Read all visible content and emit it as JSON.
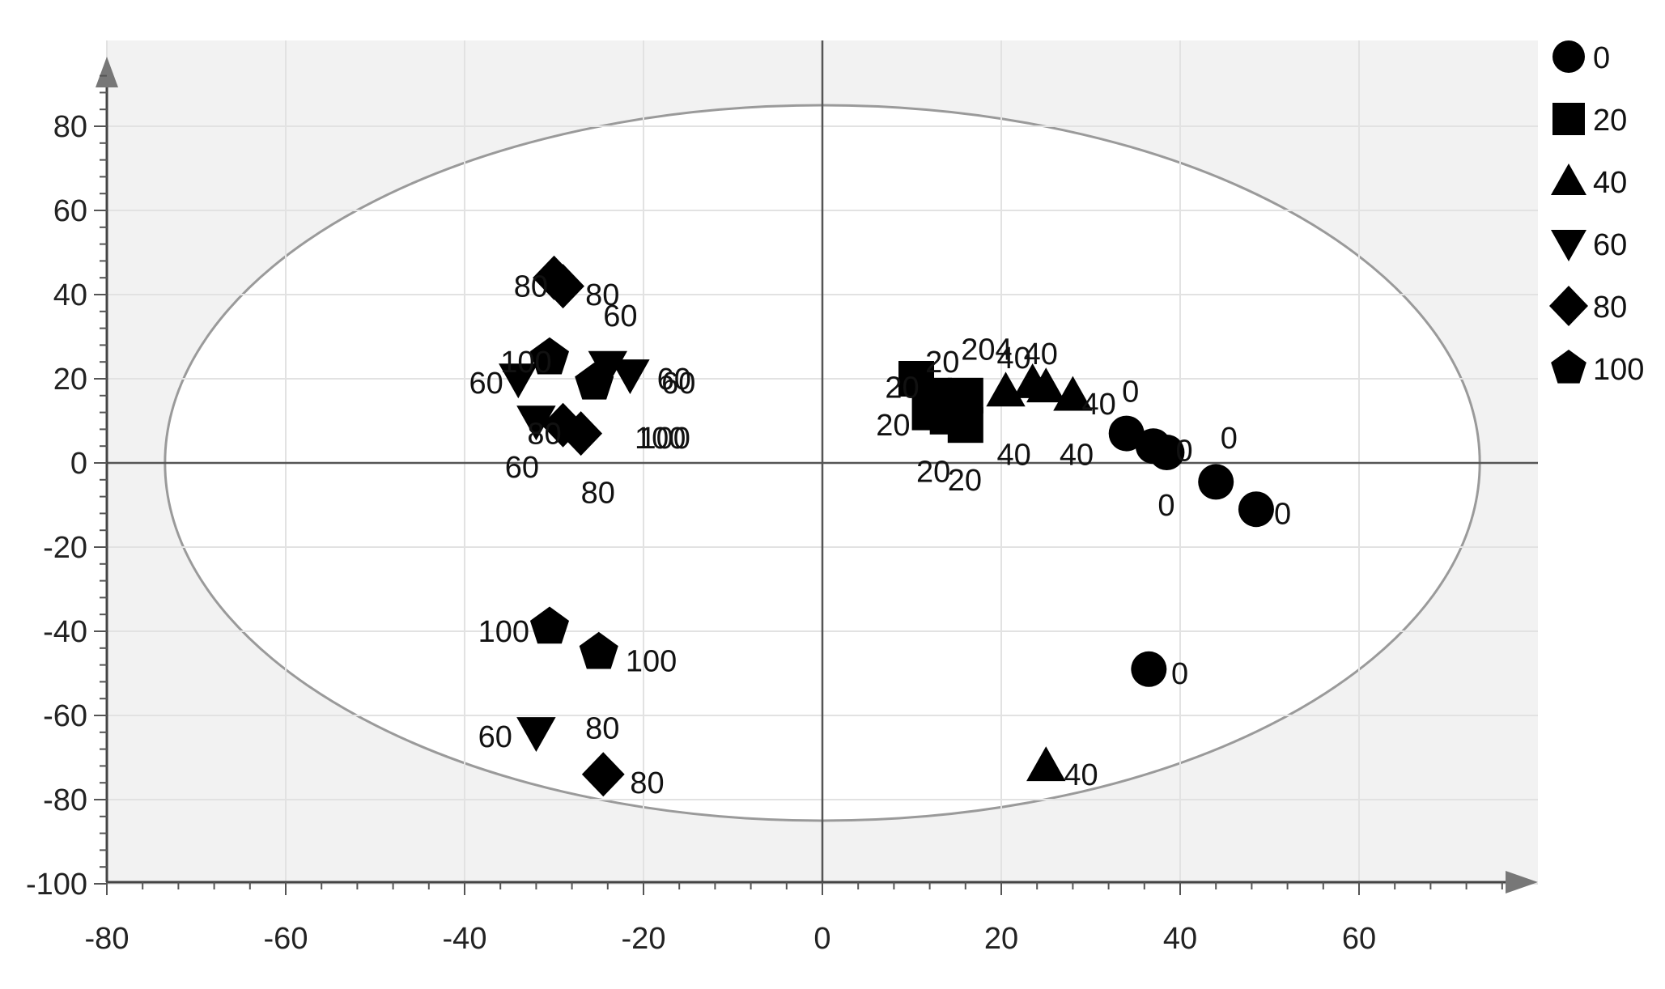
{
  "chart_data": {
    "type": "scatter",
    "title": "",
    "xlabel": "",
    "ylabel": "",
    "xlim": [
      -80,
      80
    ],
    "ylim": [
      -100,
      100
    ],
    "x_ticks": [
      -80,
      -60,
      -40,
      -20,
      0,
      20,
      40,
      60
    ],
    "y_ticks": [
      -100,
      -80,
      -60,
      -40,
      -20,
      0,
      20,
      40,
      60,
      80
    ],
    "x_tick_labels": [
      "-80",
      "-60",
      "-40",
      "-20",
      "0",
      "20",
      "40",
      "60"
    ],
    "y_tick_labels": [
      "-100",
      "-80",
      "-60",
      "-40",
      "-20",
      "0",
      "20",
      "40",
      "60",
      "80"
    ],
    "grid": true,
    "confidence_ellipse": {
      "cx": 0,
      "cy": 0,
      "rx": 73.5,
      "ry": 85
    },
    "legend_position": "right",
    "series": [
      {
        "name": "0",
        "marker": "circle",
        "points": [
          [
            34,
            7
          ],
          [
            37,
            4
          ],
          [
            38.5,
            2.5
          ],
          [
            44,
            -4.5
          ],
          [
            48.5,
            -11
          ],
          [
            36.5,
            -49
          ]
        ]
      },
      {
        "name": "20",
        "marker": "square",
        "points": [
          [
            10.5,
            20
          ],
          [
            12.5,
            16
          ],
          [
            12,
            12
          ],
          [
            14,
            11
          ],
          [
            16,
            16
          ],
          [
            16,
            9
          ]
        ]
      },
      {
        "name": "40",
        "marker": "triangle-up",
        "points": [
          [
            20.5,
            17
          ],
          [
            23.5,
            19
          ],
          [
            25,
            18
          ],
          [
            28,
            16
          ],
          [
            25,
            -72
          ]
        ]
      },
      {
        "name": "60",
        "marker": "triangle-down",
        "points": [
          [
            -34,
            20
          ],
          [
            -32,
            10
          ],
          [
            -24,
            23
          ],
          [
            -21.5,
            21
          ],
          [
            -32,
            -64
          ]
        ]
      },
      {
        "name": "80",
        "marker": "diamond",
        "points": [
          [
            -30,
            44
          ],
          [
            -29,
            42
          ],
          [
            -29,
            9
          ],
          [
            -27,
            7
          ],
          [
            -24.5,
            -74
          ]
        ]
      },
      {
        "name": "100",
        "marker": "pentagon",
        "points": [
          [
            -30.5,
            25
          ],
          [
            -25.5,
            19
          ],
          [
            -30.5,
            -39
          ],
          [
            -25,
            -45
          ]
        ]
      }
    ],
    "annotations": [
      {
        "text": "80",
        "x": -34.5,
        "y": 42
      },
      {
        "text": "80",
        "x": -26.5,
        "y": 40
      },
      {
        "text": "60",
        "x": -24.5,
        "y": 35
      },
      {
        "text": "100",
        "x": -36,
        "y": 24
      },
      {
        "text": "60",
        "x": -39.5,
        "y": 19
      },
      {
        "text": "60",
        "x": -18.5,
        "y": 20
      },
      {
        "text": "60",
        "x": -18,
        "y": 19
      },
      {
        "text": "100",
        "x": -21,
        "y": 6
      },
      {
        "text": "100",
        "x": -20.5,
        "y": 6
      },
      {
        "text": "80",
        "x": -33,
        "y": 7
      },
      {
        "text": "60",
        "x": -35.5,
        "y": -1
      },
      {
        "text": "80",
        "x": -27,
        "y": -7
      },
      {
        "text": "20",
        "x": 7,
        "y": 18
      },
      {
        "text": "20",
        "x": 11.5,
        "y": 24
      },
      {
        "text": "204",
        "x": 15.5,
        "y": 27
      },
      {
        "text": "40",
        "x": 19.5,
        "y": 25
      },
      {
        "text": "40",
        "x": 22.5,
        "y": 26
      },
      {
        "text": "20",
        "x": 6,
        "y": 9
      },
      {
        "text": "40",
        "x": 29,
        "y": 14
      },
      {
        "text": "0",
        "x": 33.5,
        "y": 17
      },
      {
        "text": "40",
        "x": 19.5,
        "y": 2
      },
      {
        "text": "40",
        "x": 26.5,
        "y": 2
      },
      {
        "text": "20",
        "x": 10.5,
        "y": -2
      },
      {
        "text": "20",
        "x": 14,
        "y": -4
      },
      {
        "text": "0",
        "x": 39.5,
        "y": 3
      },
      {
        "text": "0",
        "x": 44.5,
        "y": 6
      },
      {
        "text": "0",
        "x": 37.5,
        "y": -10
      },
      {
        "text": "0",
        "x": 50.5,
        "y": -12
      },
      {
        "text": "100",
        "x": -38.5,
        "y": -40
      },
      {
        "text": "100",
        "x": -22,
        "y": -47
      },
      {
        "text": "0",
        "x": 39,
        "y": -50
      },
      {
        "text": "60",
        "x": -38.5,
        "y": -65
      },
      {
        "text": "80",
        "x": -26.5,
        "y": -63
      },
      {
        "text": "80",
        "x": -21.5,
        "y": -76
      },
      {
        "text": "40",
        "x": 27,
        "y": -74
      }
    ]
  }
}
